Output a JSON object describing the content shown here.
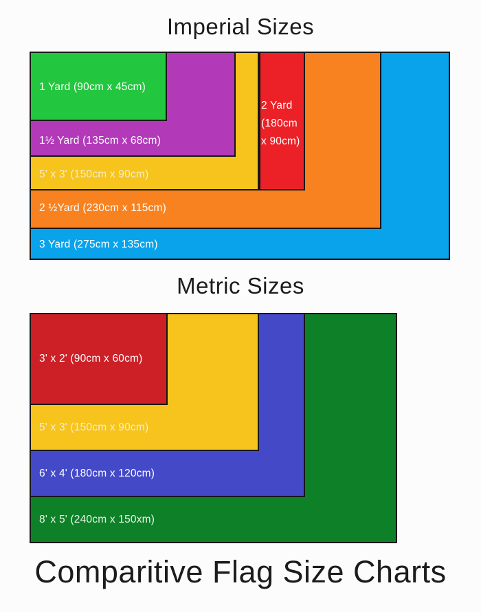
{
  "titles": {
    "imperial": "Imperial Sizes",
    "metric": "Metric Sizes",
    "footer": "Comparitive Flag Size Charts"
  },
  "colors": {
    "title_text": "#1c1c1c",
    "rect_border": "#161616",
    "background": "#fcfcfc"
  },
  "imperial": {
    "flags": [
      {
        "name": "3 Yard",
        "label": "3 Yard (275cm x 135cm)",
        "color": "#09a3ec",
        "text_color": "#ffffff"
      },
      {
        "name": "2 1/2 Yard",
        "label": "2 ½Yard (230cm x 115cm)",
        "color": "#f8821f",
        "text_color": "#ffffff"
      },
      {
        "name": "5ft x 3ft",
        "label": "5' x 3' (150cm x 90cm)",
        "color": "#f7c41d",
        "text_color": "#f4edcf"
      },
      {
        "name": "2 Yard",
        "label": "2 Yard (180cm x 90cm)",
        "color": "#ec2127",
        "text_color": "#ffffff"
      },
      {
        "name": "1 1/2 Yard",
        "label": "1½ Yard (135cm x 68cm)",
        "color": "#b23ab9",
        "text_color": "#ffffff"
      },
      {
        "name": "1 Yard",
        "label": "1 Yard (90cm x 45cm)",
        "color": "#22c73f",
        "text_color": "#ffffff"
      }
    ]
  },
  "metric": {
    "flags": [
      {
        "name": "8ft x 5ft",
        "label": "8' x 5' (240cm x 150xm)",
        "color": "#0e8128",
        "text_color": "#e9f6e9"
      },
      {
        "name": "6ft x 4ft",
        "label": "6' x 4' (180cm x 120cm)",
        "color": "#4449c8",
        "text_color": "#ffffff"
      },
      {
        "name": "5ft x 3ft",
        "label": "5' x 3' (150cm x 90cm)",
        "color": "#f7c41d",
        "text_color": "#f4edcf"
      },
      {
        "name": "3ft x 2ft",
        "label": "3' x 2' (90cm x 60cm)",
        "color": "#cd1f26",
        "text_color": "#ffffff"
      }
    ]
  },
  "chart_data": [
    {
      "type": "area",
      "title": "Imperial Sizes",
      "layout": "nested rectangles to scale, anchored top-left; 2 Yard drawn as strip beyond 5'x3' right edge",
      "categories": [
        "1 Yard",
        "1½ Yard",
        "5' x 3'",
        "2 Yard",
        "2 ½ Yard",
        "3 Yard"
      ],
      "series": [
        {
          "name": "width_cm",
          "values": [
            90,
            135,
            150,
            180,
            230,
            275
          ]
        },
        {
          "name": "height_cm",
          "values": [
            45,
            68,
            90,
            90,
            115,
            135
          ]
        }
      ]
    },
    {
      "type": "area",
      "title": "Metric Sizes",
      "layout": "nested rectangles to scale, anchored top-left",
      "categories": [
        "3' x 2'",
        "5' x 3'",
        "6' x 4'",
        "8' x 5'"
      ],
      "series": [
        {
          "name": "width_cm",
          "values": [
            90,
            150,
            180,
            240
          ]
        },
        {
          "name": "height_cm",
          "values": [
            60,
            90,
            120,
            150
          ]
        }
      ]
    }
  ]
}
